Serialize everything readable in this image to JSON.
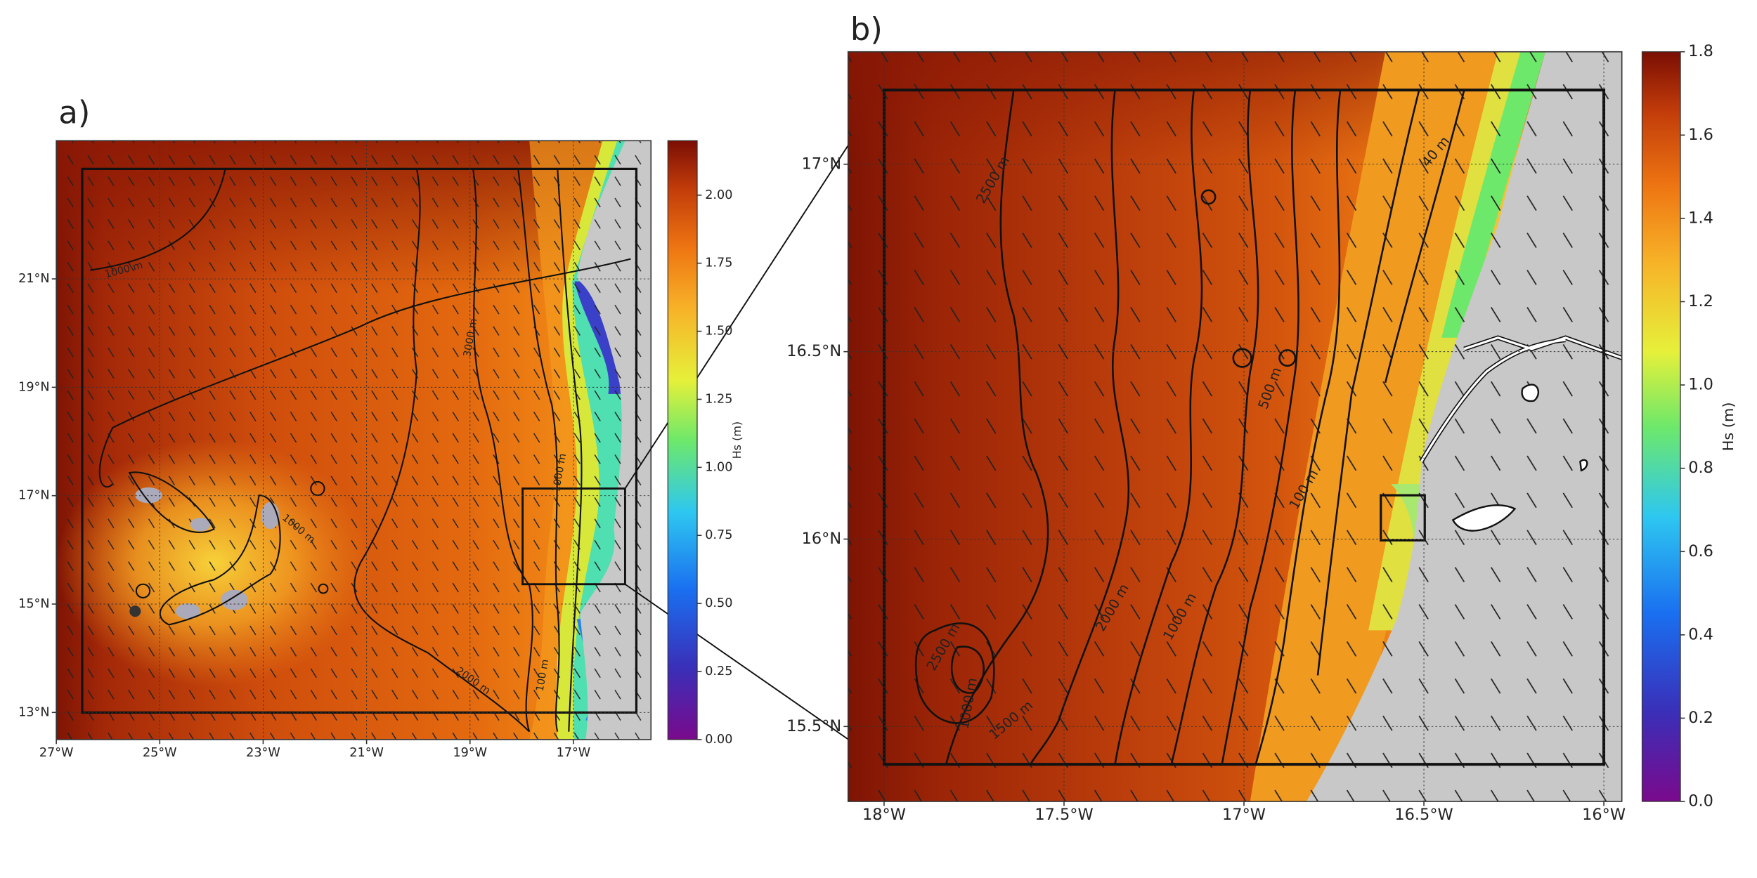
{
  "panels": [
    {
      "label": "a)",
      "xlim": [
        -27,
        -15.5
      ],
      "ylim": [
        12.5,
        23.55
      ],
      "xticks": [
        {
          "value": -27,
          "label": "27°W"
        },
        {
          "value": -25,
          "label": "25°W"
        },
        {
          "value": -23,
          "label": "23°W"
        },
        {
          "value": -21,
          "label": "21°W"
        },
        {
          "value": -19,
          "label": "19°W"
        },
        {
          "value": -17,
          "label": "17°W"
        }
      ],
      "yticks": [
        {
          "value": 13,
          "label": "13°N"
        },
        {
          "value": 15,
          "label": "15°N"
        },
        {
          "value": 17,
          "label": "17°N"
        },
        {
          "value": 19,
          "label": "19°N"
        },
        {
          "value": 21,
          "label": "21°N"
        }
      ],
      "colorbar": {
        "label": "Hs (m)",
        "lim": [
          0,
          2.2
        ],
        "ticks": [
          {
            "value": 0,
            "label": "0.00"
          },
          {
            "value": 0.25,
            "label": "0.25"
          },
          {
            "value": 0.5,
            "label": "0.50"
          },
          {
            "value": 0.75,
            "label": "0.75"
          },
          {
            "value": 1,
            "label": "1.00"
          },
          {
            "value": 1.25,
            "label": "1.25"
          },
          {
            "value": 1.5,
            "label": "1.50"
          },
          {
            "value": 1.75,
            "label": "1.75"
          },
          {
            "value": 2,
            "label": "2.00"
          }
        ]
      },
      "contour_labels": [
        "1000 m",
        "3000 m",
        "1000 m",
        "1000 m",
        "2000 m",
        "100 m"
      ]
    },
    {
      "label": "b)",
      "xlim": [
        -18.1,
        -15.95
      ],
      "ylim": [
        15.3,
        17.3
      ],
      "xticks": [
        {
          "value": -18,
          "label": "18°W"
        },
        {
          "value": -17.5,
          "label": "17.5°W"
        },
        {
          "value": -17,
          "label": "17°W"
        },
        {
          "value": -16.5,
          "label": "16.5°W"
        },
        {
          "value": -16,
          "label": "16°W"
        }
      ],
      "yticks": [
        {
          "value": 15.5,
          "label": "15.5°N"
        },
        {
          "value": 16,
          "label": "16°N"
        },
        {
          "value": 16.5,
          "label": "16.5°N"
        },
        {
          "value": 17,
          "label": "17°N"
        }
      ],
      "colorbar": {
        "label": "Hs (m)",
        "lim": [
          0,
          1.8
        ],
        "ticks": [
          {
            "value": 0,
            "label": "0.0"
          },
          {
            "value": 0.2,
            "label": "0.2"
          },
          {
            "value": 0.4,
            "label": "0.4"
          },
          {
            "value": 0.6,
            "label": "0.6"
          },
          {
            "value": 0.8,
            "label": "0.8"
          },
          {
            "value": 1,
            "label": "1.0"
          },
          {
            "value": 1.2,
            "label": "1.2"
          },
          {
            "value": 1.4,
            "label": "1.4"
          },
          {
            "value": 1.6,
            "label": "1.6"
          },
          {
            "value": 1.8,
            "label": "1.8"
          }
        ]
      },
      "contour_labels": [
        "2500 m",
        "40 m",
        "500 m",
        "100 m",
        "2000 m",
        "1000 m",
        "2500 m",
        "1000 m",
        "1500 m"
      ]
    }
  ]
}
